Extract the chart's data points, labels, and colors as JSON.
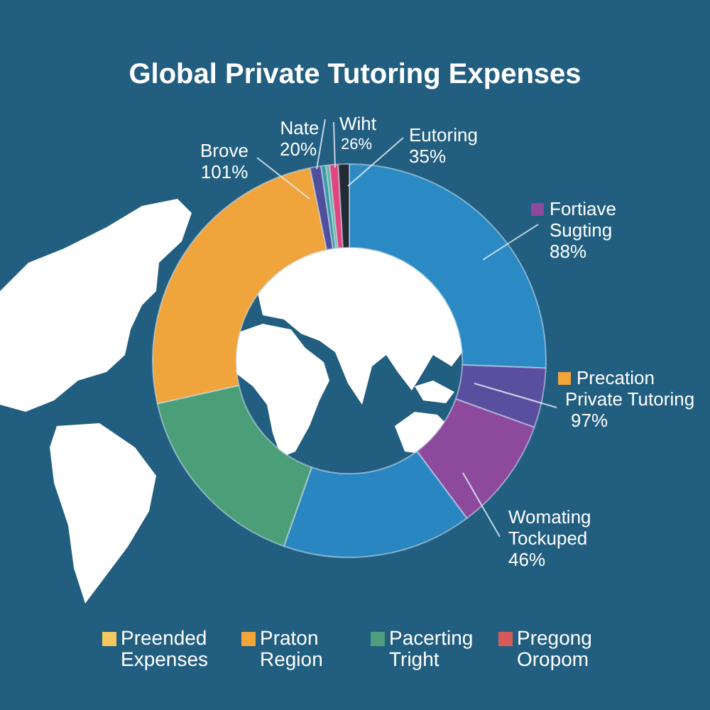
{
  "chart_data": [
    {
      "type": "donut",
      "title": "Global Private Tutoring Expenses",
      "categories": [
        "Fortiave Sugting",
        "Precation Private Tutoring",
        "Womating Tockuped",
        null,
        null,
        "Brove",
        "Nate",
        null,
        null,
        "Wiht",
        "Eutoring"
      ],
      "values": [
        25.6,
        4.9,
        9.3,
        15.6,
        16.1,
        25.3,
        0.9,
        0.4,
        0.3,
        0.7,
        0.9
      ],
      "colors": [
        "#2b8ac4",
        "#5a4f9f",
        "#8d4a9c",
        "#2a86c0",
        "#4a9e78",
        "#efa43c",
        "#4f4f9e",
        "#3a9aa6",
        "#62b5a3",
        "#e0457f",
        "#222a33"
      ],
      "annotations": [
        "88%",
        "97%",
        "46%",
        "101%",
        "20%",
        "26%",
        "35%"
      ]
    },
    {
      "type": "other",
      "categories": [
        "Preended Expenses",
        "Praton Region",
        "Pacerting Tright",
        "Pregong Oropom"
      ],
      "colors": [
        "#f6c75e",
        "#f2a63a",
        "#4f9e7e",
        "#d65a56"
      ]
    }
  ]
}
